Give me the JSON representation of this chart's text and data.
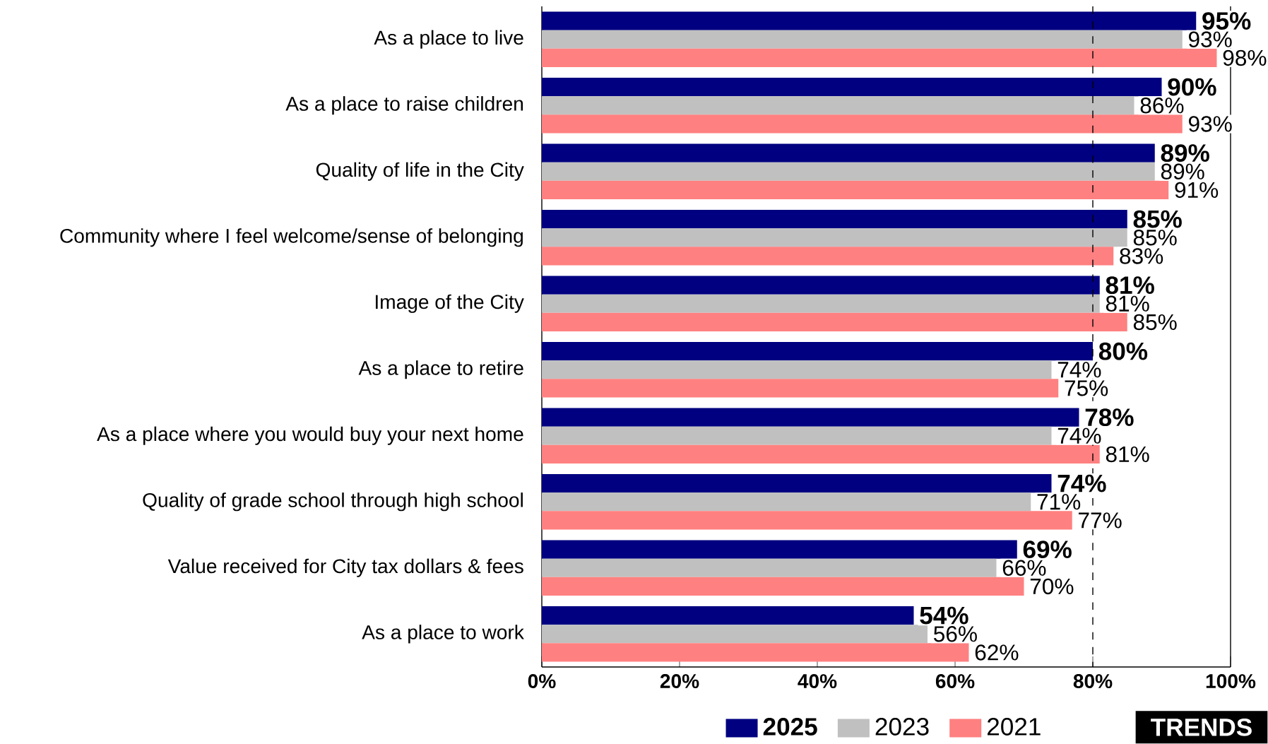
{
  "chart_data": {
    "type": "bar",
    "orientation": "horizontal",
    "categories": [
      "As a place to live",
      "As a place to raise children",
      "Quality of life in the City",
      "Community where I feel welcome/sense of belonging",
      "Image of the City",
      "As a place to retire",
      "As a place where you would buy your next home",
      "Quality of grade school through high school",
      "Value received for City tax dollars & fees",
      "As a place to work"
    ],
    "series": [
      {
        "name": "2025",
        "color": "#000080",
        "values": [
          95,
          90,
          89,
          85,
          81,
          80,
          78,
          74,
          69,
          54
        ],
        "value_labels": [
          "95%",
          "90%",
          "89%",
          "85%",
          "81%",
          "80%",
          "78%",
          "74%",
          "69%",
          "54%"
        ]
      },
      {
        "name": "2023",
        "color": "#c0c0c0",
        "values": [
          93,
          86,
          89,
          85,
          81,
          74,
          74,
          71,
          66,
          56
        ],
        "value_labels": [
          "93%",
          "86%",
          "89%",
          "85%",
          "81%",
          "74%",
          "74%",
          "71%",
          "66%",
          "56%"
        ]
      },
      {
        "name": "2021",
        "color": "#ff8080",
        "values": [
          98,
          93,
          91,
          83,
          85,
          75,
          81,
          77,
          70,
          62
        ],
        "value_labels": [
          "98%",
          "93%",
          "91%",
          "83%",
          "85%",
          "75%",
          "81%",
          "77%",
          "70%",
          "62%"
        ]
      }
    ],
    "xlim": [
      0,
      100
    ],
    "xticks": [
      {
        "value": 0,
        "label": "0%"
      },
      {
        "value": 20,
        "label": "20%"
      },
      {
        "value": 40,
        "label": "40%"
      },
      {
        "value": 60,
        "label": "60%"
      },
      {
        "value": 80,
        "label": "80%"
      },
      {
        "value": 100,
        "label": "100%"
      }
    ],
    "ref_lines": [
      {
        "axis": "x",
        "value": 80,
        "line_style": "dashed",
        "color": "#000000"
      }
    ],
    "legend": "bottom",
    "grid": false,
    "annotations": [
      "TRENDS"
    ]
  }
}
